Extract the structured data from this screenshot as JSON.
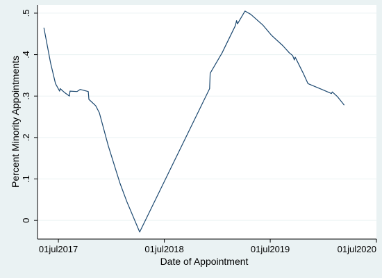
{
  "chart_data": {
    "type": "line",
    "title": "",
    "xlabel": "Date of Appointment",
    "ylabel": "Percent Minority Appointments",
    "xlim": [
      "2017-04-20",
      "2020-07-01"
    ],
    "ylim": [
      -0.045,
      0.52
    ],
    "grid": true,
    "legend": "none",
    "x_ticks": [
      {
        "label": "01jul2017",
        "date": "2017-07-01"
      },
      {
        "label": "01jul2018",
        "date": "2018-07-01"
      },
      {
        "label": "01jul2019",
        "date": "2019-07-01"
      },
      {
        "label": "01jul2020",
        "date": "2020-07-01"
      }
    ],
    "y_ticks": [
      {
        "label": "0",
        "value": 0
      },
      {
        "label": ".1",
        "value": 0.1
      },
      {
        "label": ".2",
        "value": 0.2
      },
      {
        "label": ".3",
        "value": 0.3
      },
      {
        "label": ".4",
        "value": 0.4
      },
      {
        "label": ".5",
        "value": 0.5
      }
    ],
    "series": [
      {
        "color": "#1a476f",
        "points": [
          {
            "x": "2017-05-12",
            "y": 0.465
          },
          {
            "x": "2017-06-04",
            "y": 0.38
          },
          {
            "x": "2017-06-21",
            "y": 0.33
          },
          {
            "x": "2017-07-05",
            "y": 0.312
          },
          {
            "x": "2017-07-07",
            "y": 0.318
          },
          {
            "x": "2017-07-23",
            "y": 0.308
          },
          {
            "x": "2017-08-08",
            "y": 0.3
          },
          {
            "x": "2017-08-10",
            "y": 0.312
          },
          {
            "x": "2017-09-03",
            "y": 0.311
          },
          {
            "x": "2017-09-14",
            "y": 0.316
          },
          {
            "x": "2017-10-12",
            "y": 0.311
          },
          {
            "x": "2017-10-14",
            "y": 0.292
          },
          {
            "x": "2017-11-06",
            "y": 0.277
          },
          {
            "x": "2017-11-19",
            "y": 0.26
          },
          {
            "x": "2017-12-20",
            "y": 0.18
          },
          {
            "x": "2018-01-29",
            "y": 0.09
          },
          {
            "x": "2018-02-22",
            "y": 0.045
          },
          {
            "x": "2018-04-07",
            "y": -0.028
          },
          {
            "x": "2018-12-04",
            "y": 0.318
          },
          {
            "x": "2018-12-06",
            "y": 0.355
          },
          {
            "x": "2019-01-16",
            "y": 0.404
          },
          {
            "x": "2019-03-03",
            "y": 0.47
          },
          {
            "x": "2019-03-07",
            "y": 0.482
          },
          {
            "x": "2019-03-10",
            "y": 0.474
          },
          {
            "x": "2019-04-05",
            "y": 0.505
          },
          {
            "x": "2019-04-25",
            "y": 0.497
          },
          {
            "x": "2019-06-06",
            "y": 0.471
          },
          {
            "x": "2019-07-06",
            "y": 0.446
          },
          {
            "x": "2019-08-13",
            "y": 0.422
          },
          {
            "x": "2019-09-05",
            "y": 0.404
          },
          {
            "x": "2019-09-16",
            "y": 0.398
          },
          {
            "x": "2019-09-22",
            "y": 0.387
          },
          {
            "x": "2019-09-25",
            "y": 0.394
          },
          {
            "x": "2019-10-22",
            "y": 0.356
          },
          {
            "x": "2019-11-08",
            "y": 0.33
          },
          {
            "x": "2019-12-26",
            "y": 0.316
          },
          {
            "x": "2020-01-28",
            "y": 0.306
          },
          {
            "x": "2020-01-31",
            "y": 0.31
          },
          {
            "x": "2020-02-17",
            "y": 0.299
          },
          {
            "x": "2020-03-12",
            "y": 0.278
          }
        ]
      }
    ]
  }
}
